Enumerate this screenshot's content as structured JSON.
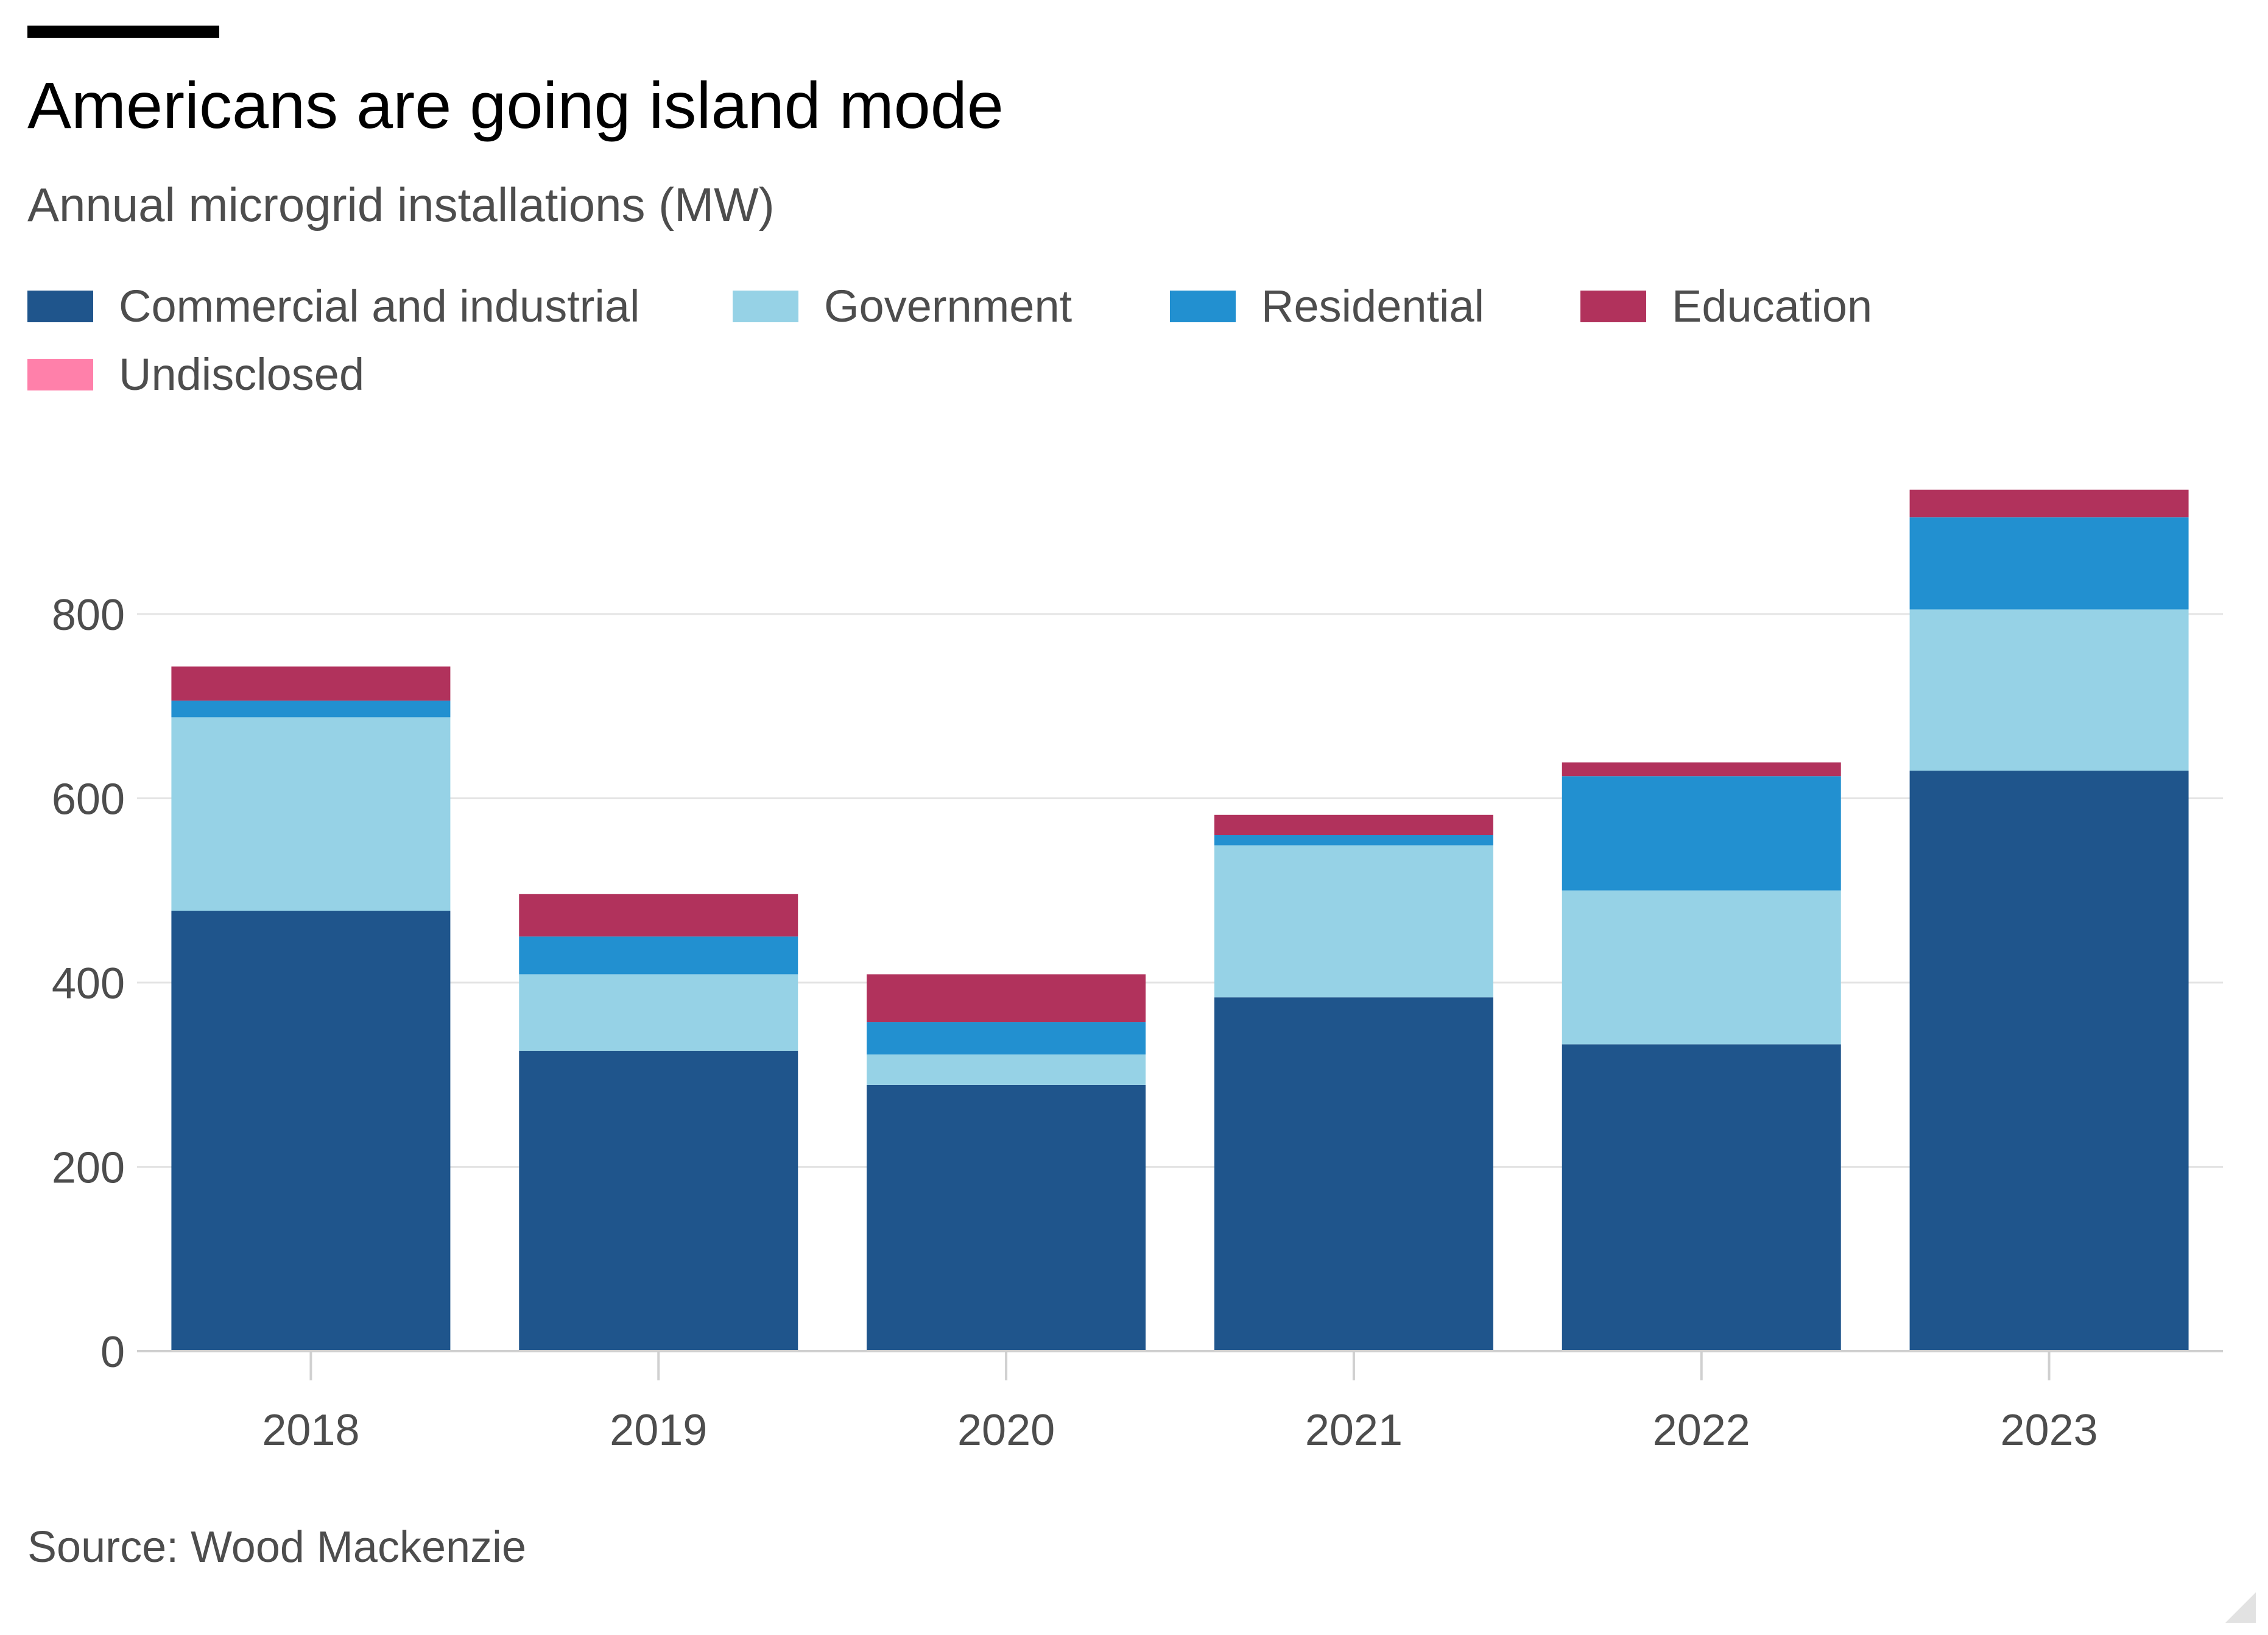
{
  "header": {
    "title": "Americans are going island mode",
    "subtitle": "Annual microgrid installations (MW)"
  },
  "footer": {
    "source": "Source: Wood Mackenzie"
  },
  "chart_data": {
    "type": "bar",
    "stacked": true,
    "title": "Americans are going island mode",
    "subtitle": "Annual microgrid installations (MW)",
    "xlabel": "",
    "ylabel": "",
    "categories": [
      "2018",
      "2019",
      "2020",
      "2021",
      "2022",
      "2023"
    ],
    "ylim": [
      0,
      940
    ],
    "yticks": [
      0,
      200,
      400,
      600,
      800
    ],
    "grid": true,
    "legend_position": "top-left",
    "series": [
      {
        "name": "Commercial and industrial",
        "color": "#1f558c",
        "values": [
          478,
          326,
          289,
          384,
          333,
          630
        ]
      },
      {
        "name": "Government",
        "color": "#96d2e6",
        "values": [
          210,
          83,
          33,
          165,
          167,
          175
        ]
      },
      {
        "name": "Residential",
        "color": "#2290d0",
        "values": [
          18,
          41,
          35,
          11,
          124,
          100
        ]
      },
      {
        "name": "Education",
        "color": "#b1325c",
        "values": [
          37,
          46,
          52,
          22,
          15,
          30
        ]
      },
      {
        "name": "Undisclosed",
        "color": "#ff80aa",
        "values": [
          0,
          0,
          0,
          0,
          0,
          0
        ]
      }
    ],
    "source": "Source: Wood Mackenzie"
  }
}
